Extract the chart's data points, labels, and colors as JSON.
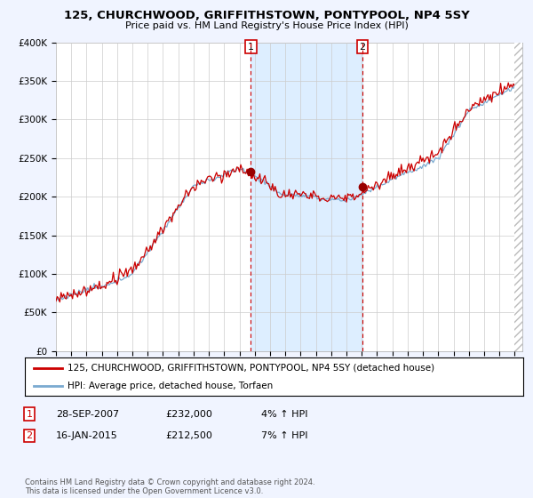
{
  "title": "125, CHURCHWOOD, GRIFFITHSTOWN, PONTYPOOL, NP4 5SY",
  "subtitle": "Price paid vs. HM Land Registry's House Price Index (HPI)",
  "ylabel_ticks": [
    "£0",
    "£50K",
    "£100K",
    "£150K",
    "£200K",
    "£250K",
    "£300K",
    "£350K",
    "£400K"
  ],
  "ytick_vals": [
    0,
    50000,
    100000,
    150000,
    200000,
    250000,
    300000,
    350000,
    400000
  ],
  "ylim": [
    0,
    400000
  ],
  "xlim_start": 1995.0,
  "xlim_end": 2025.5,
  "background_color": "#f0f4ff",
  "plot_bg_color": "#ffffff",
  "grid_color": "#cccccc",
  "hpi_color": "#7aaad0",
  "price_color": "#cc0000",
  "shade_color": "#ddeeff",
  "transaction1_x": 2007.75,
  "transaction1_y": 232000,
  "transaction2_x": 2015.04,
  "transaction2_y": 212500,
  "legend_line1": "125, CHURCHWOOD, GRIFFITHSTOWN, PONTYPOOL, NP4 5SY (detached house)",
  "legend_line2": "HPI: Average price, detached house, Torfaen",
  "annotation1_label": "1",
  "annotation1_date": "28-SEP-2007",
  "annotation1_price": "£232,000",
  "annotation1_hpi": "4% ↑ HPI",
  "annotation2_label": "2",
  "annotation2_date": "16-JAN-2015",
  "annotation2_price": "£212,500",
  "annotation2_hpi": "7% ↑ HPI",
  "footer": "Contains HM Land Registry data © Crown copyright and database right 2024.\nThis data is licensed under the Open Government Licence v3.0."
}
